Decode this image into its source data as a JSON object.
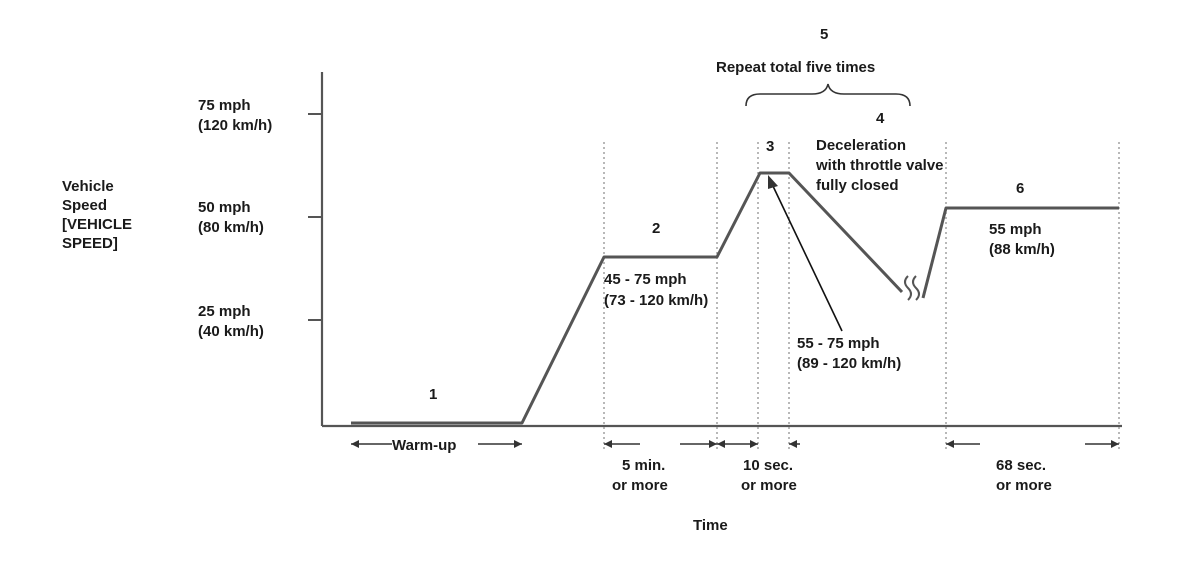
{
  "axes": {
    "y_title": [
      "Vehicle",
      "Speed",
      "[VEHICLE",
      "SPEED]"
    ],
    "x_title": "Time",
    "y_ticks": [
      {
        "mph": "75 mph",
        "kmh": "(120 km/h)"
      },
      {
        "mph": "50 mph",
        "kmh": "(80 km/h)"
      },
      {
        "mph": "25 mph",
        "kmh": "(40 km/h)"
      }
    ]
  },
  "phases": [
    {
      "number": "1"
    },
    {
      "number": "2",
      "speed_mph": "45 - 75 mph",
      "speed_kmh": "(73 - 120 km/h)"
    },
    {
      "number": "3",
      "speed_mph": "55 - 75 mph",
      "speed_kmh": "(89 - 120 km/h)"
    },
    {
      "number": "4",
      "desc": [
        "Deceleration",
        "with throttle valve",
        "fully closed"
      ]
    },
    {
      "number": "5"
    },
    {
      "number": "6",
      "speed_mph": "55 mph",
      "speed_kmh": "(88 km/h)"
    }
  ],
  "repeat": {
    "label": "Repeat total five times"
  },
  "durations": {
    "warmup": "Warm-up",
    "phase2": [
      "5 min.",
      "or more"
    ],
    "phase3": [
      "10 sec.",
      "or more"
    ],
    "phase6": [
      "68 sec.",
      "or more"
    ]
  }
}
